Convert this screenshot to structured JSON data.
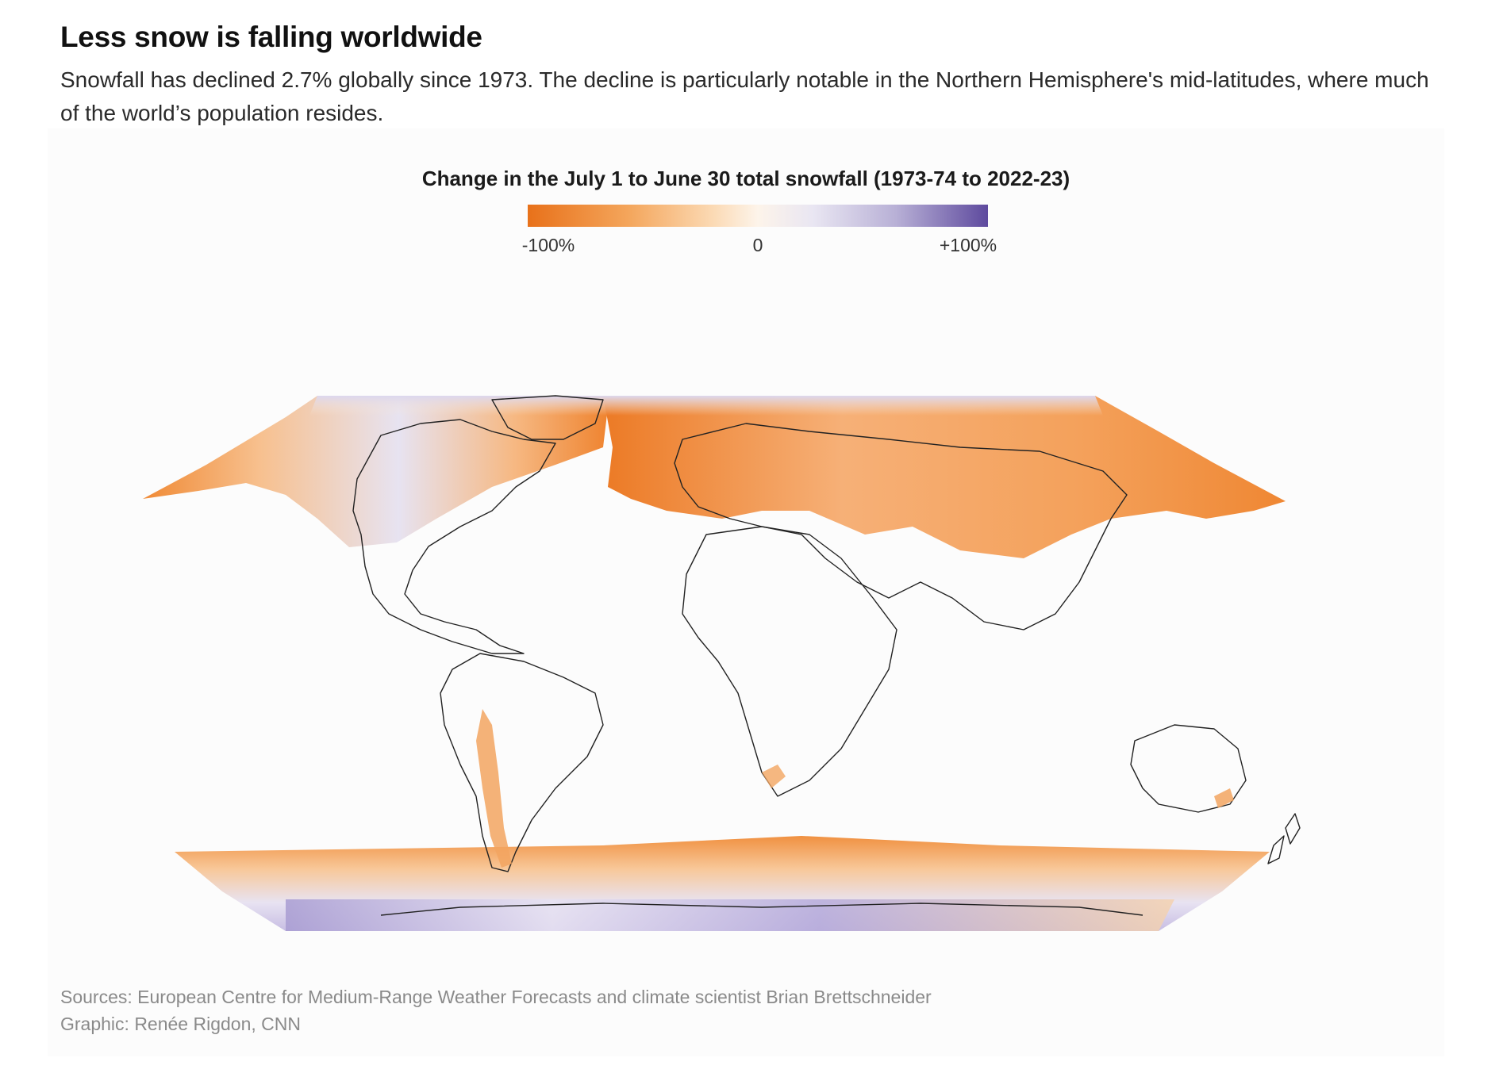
{
  "header": {
    "title": "Less snow is falling worldwide",
    "subtitle": "Snowfall has declined 2.7% globally since 1973. The decline is particularly notable in the Northern Hemisphere's mid-latitudes, where much of the world’s population resides."
  },
  "legend": {
    "title": "Change in the July 1 to June 30 total snowfall (1973-74 to 2022-23)",
    "min_label": "-100%",
    "mid_label": "0",
    "max_label": "+100%",
    "colors": {
      "decline": "#e8711a",
      "neutral": "#fdf4ea",
      "increase": "#5e4a9e"
    }
  },
  "map": {
    "description_regions": [
      {
        "name": "north-america-decline",
        "color": "#f3a462"
      },
      {
        "name": "eurasia-decline",
        "color": "#f29a4f"
      },
      {
        "name": "southern-ocean-decline",
        "color": "#f2a25a"
      },
      {
        "name": "antarctica-increase",
        "color": "#cbc3e6"
      }
    ],
    "land_outline_color": "#222222"
  },
  "footer": {
    "sources": "Sources: European Centre for Medium-Range Weather Forecasts and climate scientist Brian Brettschneider",
    "credit": "Graphic: Renée Rigdon, CNN"
  }
}
